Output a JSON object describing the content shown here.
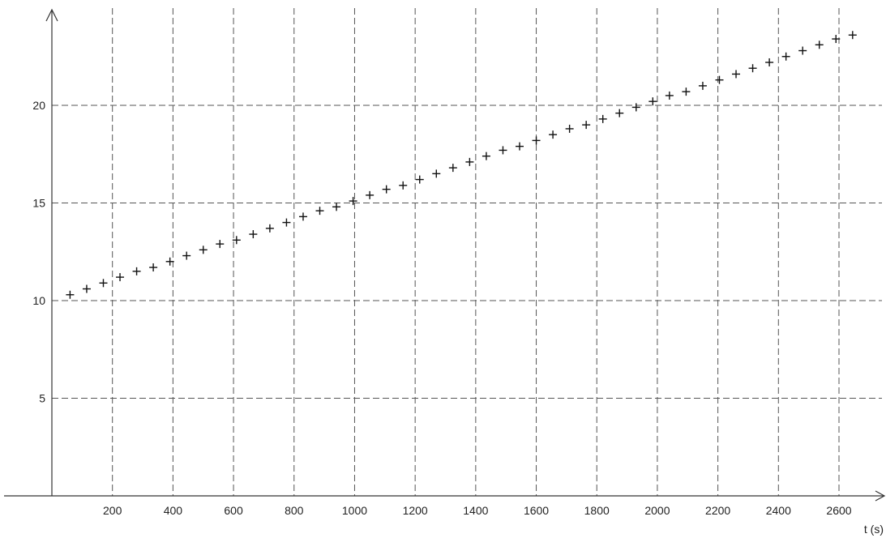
{
  "chart_data": {
    "type": "scatter",
    "title": "",
    "xlabel": "t (s)",
    "ylabel": "",
    "xlim": [
      0,
      2800
    ],
    "ylim": [
      0,
      25
    ],
    "grid": true,
    "marker": "+",
    "x_ticks": [
      200,
      400,
      600,
      800,
      1000,
      1200,
      1400,
      1600,
      1800,
      2000,
      2200,
      2400,
      2600
    ],
    "y_ticks": [
      5,
      10,
      15,
      20
    ],
    "x": [
      60,
      115,
      170,
      225,
      280,
      335,
      390,
      445,
      500,
      555,
      610,
      665,
      720,
      775,
      830,
      885,
      940,
      995,
      1050,
      1105,
      1160,
      1215,
      1270,
      1325,
      1380,
      1435,
      1490,
      1545,
      1600,
      1655,
      1710,
      1765,
      1820,
      1875,
      1930,
      1985,
      2040,
      2095,
      2150,
      2205,
      2260,
      2315,
      2370,
      2425,
      2480,
      2535,
      2590,
      2645
    ],
    "y": [
      10.3,
      10.6,
      10.9,
      11.2,
      11.5,
      11.7,
      12.0,
      12.3,
      12.6,
      12.9,
      13.1,
      13.4,
      13.7,
      14.0,
      14.3,
      14.6,
      14.8,
      15.1,
      15.4,
      15.7,
      15.9,
      16.2,
      16.5,
      16.8,
      17.1,
      17.4,
      17.7,
      17.9,
      18.2,
      18.5,
      18.8,
      19.0,
      19.3,
      19.6,
      19.9,
      20.2,
      20.5,
      20.7,
      21.0,
      21.3,
      21.6,
      21.9,
      22.2,
      22.5,
      22.8,
      23.1,
      23.4,
      23.6
    ]
  }
}
